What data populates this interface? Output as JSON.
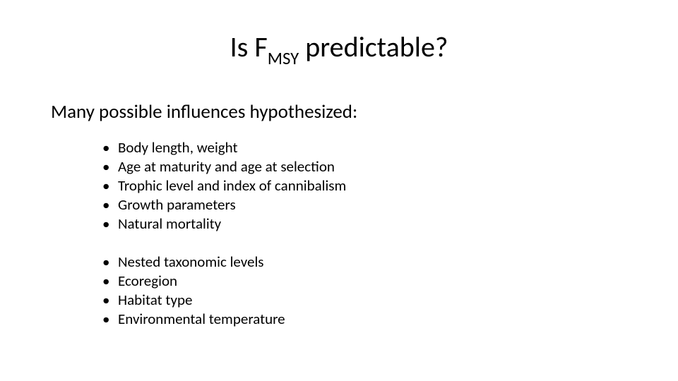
{
  "colors": {
    "background": "#ffffff",
    "text": "#000000"
  },
  "typography": {
    "family": "Calibri",
    "title_fontsize": 40,
    "subtitle_fontsize": 27,
    "bullet_fontsize": 21,
    "line_height": 1.28
  },
  "title": {
    "pre": "Is F",
    "sub": "MSY",
    "post": " predictable?"
  },
  "subtitle": "Many possible influences hypothesized:",
  "bullets_group1": [
    "Body length, weight",
    "Age at maturity and age at selection",
    "Trophic level and index of cannibalism",
    "Growth parameters",
    "Natural mortality"
  ],
  "bullets_group2": [
    "Nested taxonomic levels",
    "Ecoregion",
    "Habitat type",
    "Environmental temperature"
  ]
}
